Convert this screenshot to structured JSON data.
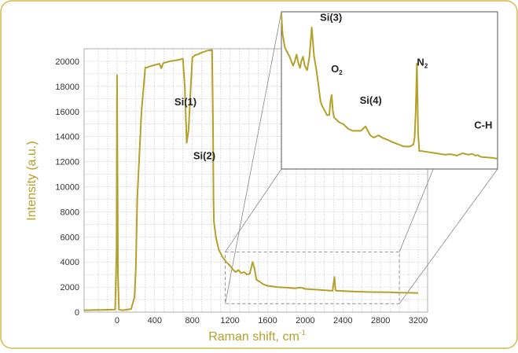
{
  "colors": {
    "accent": "#B5A02A",
    "frame": "#D4B94E",
    "grid": "#B4B4B4",
    "zoom": "#888888"
  },
  "chart_data": [
    {
      "type": "line",
      "xlabel": "Raman shift, cm",
      "xlabel_sup": "-1",
      "ylabel": "Intensity (a.u.)",
      "xlim": [
        -350,
        3300
      ],
      "ylim": [
        0,
        21000
      ],
      "grid": true,
      "xticks": [
        0,
        400,
        800,
        1200,
        1600,
        2000,
        2400,
        2800,
        3200
      ],
      "yticks": [
        0,
        2000,
        4000,
        6000,
        8000,
        10000,
        12000,
        14000,
        16000,
        18000,
        20000
      ],
      "series": [
        {
          "x": [
            -350,
            -20,
            -5,
            0,
            10,
            20,
            60,
            150,
            185,
            200,
            215,
            260,
            300,
            320,
            350,
            400,
            450,
            470,
            490,
            560,
            640,
            700,
            720,
            740,
            760,
            780,
            800,
            830,
            860,
            900,
            960,
            1010,
            1020,
            1025,
            1030,
            1050,
            1080,
            1120,
            1160,
            1200,
            1230,
            1260,
            1290,
            1320,
            1350,
            1380,
            1410,
            1440,
            1460,
            1480,
            1520,
            1560,
            1600,
            1700,
            1800,
            1900,
            1930,
            1960,
            2000,
            2100,
            2200,
            2290,
            2310,
            2320,
            2330,
            2350,
            2500,
            2700,
            2900,
            3000,
            3100,
            3200
          ],
          "y": [
            150,
            200,
            5000,
            18900,
            3000,
            200,
            150,
            250,
            1200,
            3500,
            9000,
            16000,
            19500,
            19500,
            19600,
            19700,
            19800,
            19450,
            19850,
            20000,
            20100,
            20200,
            18000,
            13500,
            14500,
            17500,
            20300,
            20500,
            20550,
            20700,
            20850,
            20900,
            15000,
            9000,
            7200,
            6000,
            5000,
            4400,
            4000,
            3700,
            3400,
            3200,
            3350,
            3100,
            3200,
            3000,
            3050,
            4000,
            3500,
            2600,
            2400,
            2200,
            2100,
            2000,
            1950,
            1900,
            1950,
            1950,
            1850,
            1800,
            1750,
            1700,
            2800,
            1800,
            1700,
            1700,
            1650,
            1600,
            1580,
            1550,
            1540,
            1520
          ]
        }
      ]
    },
    {
      "type": "line",
      "note": "inset: zoomed view of the 1150–3000 cm-1 region",
      "xlim": [
        1150,
        3000
      ],
      "ylim": [
        1300,
        4800
      ],
      "annotations": [
        {
          "text": "Si(1)",
          "x": 610,
          "y": 16500
        },
        {
          "text": "Si(2)",
          "x": 810,
          "y": 12200
        },
        {
          "text": "Si(3)",
          "x": 1480,
          "y": 4600
        },
        {
          "text": "O",
          "sub": "2",
          "x": 1575,
          "y": 3450
        },
        {
          "text": "Si(4)",
          "x": 1820,
          "y": 2750
        },
        {
          "text": "N",
          "sub": "2",
          "x": 2310,
          "y": 3600
        },
        {
          "text": "C-H",
          "x": 2800,
          "y": 2200
        }
      ],
      "series": [
        {
          "x": [
            1150,
            1160,
            1180,
            1200,
            1220,
            1235,
            1250,
            1265,
            1280,
            1295,
            1310,
            1320,
            1335,
            1350,
            1370,
            1390,
            1410,
            1430,
            1450,
            1470,
            1485,
            1500,
            1520,
            1540,
            1560,
            1570,
            1580,
            1590,
            1600,
            1620,
            1640,
            1680,
            1720,
            1760,
            1800,
            1830,
            1850,
            1870,
            1890,
            1910,
            1940,
            1980,
            2020,
            2060,
            2100,
            2150,
            2200,
            2250,
            2280,
            2290,
            2300,
            2310,
            2320,
            2330,
            2350,
            2400,
            2450,
            2500,
            2550,
            2600,
            2650,
            2700,
            2750,
            2780,
            2810,
            2830,
            2860,
            2900,
            2950,
            3000
          ],
          "y": [
            4750,
            4300,
            4000,
            3900,
            3800,
            3700,
            3600,
            3700,
            3850,
            3650,
            3550,
            3700,
            3800,
            3600,
            3500,
            3800,
            4450,
            3800,
            3500,
            3100,
            2800,
            2700,
            2600,
            2500,
            2500,
            2800,
            2950,
            2600,
            2450,
            2400,
            2350,
            2300,
            2200,
            2150,
            2150,
            2150,
            2200,
            2250,
            2150,
            2050,
            2000,
            2050,
            1990,
            1950,
            1900,
            1850,
            1800,
            1800,
            1850,
            2000,
            2600,
            3650,
            2100,
            1700,
            1700,
            1680,
            1660,
            1640,
            1620,
            1630,
            1600,
            1650,
            1620,
            1640,
            1600,
            1610,
            1570,
            1560,
            1550,
            1530
          ]
        }
      ]
    }
  ]
}
